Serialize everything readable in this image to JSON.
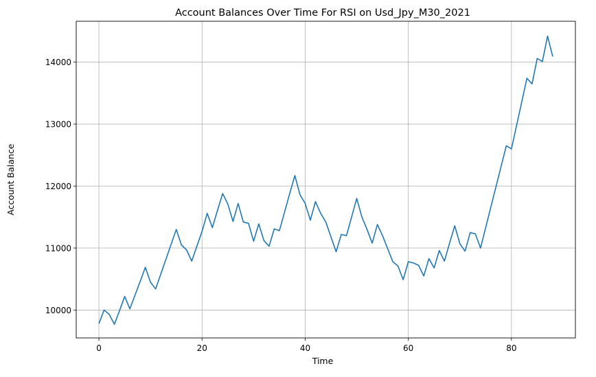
{
  "chart_data": {
    "type": "line",
    "title": "Account Balances Over Time For RSI on Usd_Jpy_M30_2021",
    "xlabel": "Time",
    "ylabel": "Account Balance",
    "xlim": [
      -4.4,
      92.4
    ],
    "ylim": [
      9550,
      14660
    ],
    "xticks": [
      0,
      20,
      40,
      60,
      80
    ],
    "yticks": [
      10000,
      11000,
      12000,
      13000,
      14000
    ],
    "grid": true,
    "line_color": "#1f77b4",
    "series": [
      {
        "x": [
          0,
          1,
          2,
          3,
          4,
          5,
          6,
          7,
          8,
          9,
          10,
          11,
          12,
          13,
          14,
          15,
          16,
          17,
          18,
          19,
          20,
          21,
          22,
          23,
          24,
          25,
          26,
          27,
          28,
          29,
          30,
          31,
          32,
          33,
          34,
          35,
          36,
          37,
          38,
          39,
          40,
          41,
          42,
          43,
          44,
          45,
          46,
          47,
          48,
          49,
          50,
          51,
          52,
          53,
          54,
          55,
          56,
          57,
          58,
          59,
          60,
          61,
          62,
          63,
          64,
          65,
          66,
          67,
          68,
          69,
          70,
          71,
          72,
          73,
          74,
          75,
          76,
          77,
          78,
          79,
          80,
          81,
          82,
          83,
          84,
          85,
          86,
          87,
          88
        ],
        "values": [
          9780,
          10000,
          9930,
          9770,
          9990,
          10220,
          10020,
          10240,
          10460,
          10690,
          10450,
          10340,
          10580,
          10820,
          11060,
          11300,
          11050,
          10970,
          10790,
          11030,
          11270,
          11560,
          11330,
          11610,
          11880,
          11710,
          11430,
          11720,
          11420,
          11400,
          11110,
          11390,
          11120,
          11030,
          11310,
          11280,
          11580,
          11880,
          12170,
          11860,
          11720,
          11450,
          11750,
          11560,
          11420,
          11180,
          10940,
          11220,
          11200,
          11500,
          11800,
          11500,
          11300,
          11080,
          11380,
          11200,
          10990,
          10780,
          10710,
          10490,
          10780,
          10760,
          10720,
          10550,
          10830,
          10680,
          10960,
          10790,
          11080,
          11360,
          11070,
          10950,
          11250,
          11230,
          11000,
          11330,
          11660,
          11990,
          12320,
          12650,
          12600,
          12980,
          13360,
          13740,
          13650,
          14060,
          14010,
          14420,
          14090
        ]
      }
    ]
  }
}
